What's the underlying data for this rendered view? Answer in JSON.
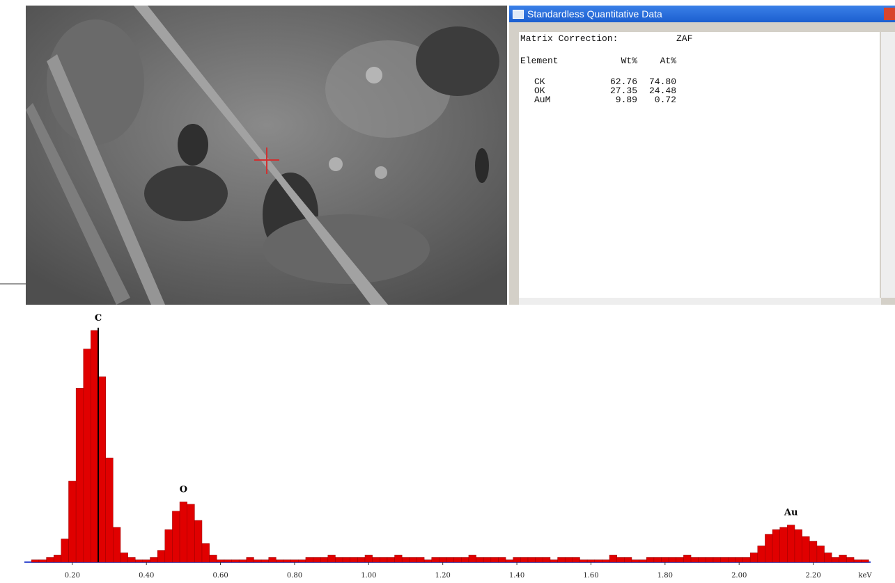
{
  "window": {
    "title": "Standardless Quantitative Data",
    "matrix_label": "Matrix Correction:",
    "matrix_value": "ZAF",
    "header": [
      "Element",
      "Wt%",
      "At%"
    ],
    "rows": [
      [
        "CK",
        "62.76",
        "74.80"
      ],
      [
        "OK",
        "27.35",
        "24.48"
      ],
      [
        "AuM",
        "9.89",
        "0.72"
      ]
    ]
  },
  "chart_data": {
    "type": "histogram",
    "x_label": "keV",
    "color": "#e00000",
    "xlim": [
      0.08,
      2.37
    ],
    "ylim": [
      0,
      100
    ],
    "xticks": [
      {
        "value": 0.2,
        "label": "0.20"
      },
      {
        "value": 0.4,
        "label": "0.40"
      },
      {
        "value": 0.6,
        "label": "0.60"
      },
      {
        "value": 0.8,
        "label": "0.80"
      },
      {
        "value": 1,
        "label": "1.00"
      },
      {
        "value": 1.2,
        "label": "1.20"
      },
      {
        "value": 1.4,
        "label": "1.40"
      },
      {
        "value": 1.6,
        "label": "1.60"
      },
      {
        "value": 1.8,
        "label": "1.80"
      },
      {
        "value": 2,
        "label": "2.00"
      },
      {
        "value": 2.2,
        "label": "2.20"
      }
    ],
    "annotations": [
      {
        "text": "C",
        "x": 0.27
      },
      {
        "text": "O",
        "x": 0.5
      },
      {
        "text": "Au",
        "x": 2.14
      }
    ],
    "x": [
      0.1,
      0.12,
      0.14,
      0.16,
      0.18,
      0.2,
      0.22,
      0.24,
      0.26,
      0.28,
      0.3,
      0.32,
      0.34,
      0.36,
      0.38,
      0.4,
      0.42,
      0.44,
      0.46,
      0.48,
      0.5,
      0.52,
      0.54,
      0.56,
      0.58,
      0.6,
      0.62,
      0.64,
      0.66,
      0.68,
      0.7,
      0.72,
      0.74,
      0.76,
      0.78,
      0.8,
      0.82,
      0.84,
      0.86,
      0.88,
      0.9,
      0.92,
      0.94,
      0.96,
      0.98,
      1.0,
      1.02,
      1.04,
      1.06,
      1.08,
      1.1,
      1.12,
      1.14,
      1.16,
      1.18,
      1.2,
      1.22,
      1.24,
      1.26,
      1.28,
      1.3,
      1.32,
      1.34,
      1.36,
      1.38,
      1.4,
      1.42,
      1.44,
      1.46,
      1.48,
      1.5,
      1.52,
      1.54,
      1.56,
      1.58,
      1.6,
      1.62,
      1.64,
      1.66,
      1.68,
      1.7,
      1.72,
      1.74,
      1.76,
      1.78,
      1.8,
      1.82,
      1.84,
      1.86,
      1.88,
      1.9,
      1.92,
      1.94,
      1.96,
      1.98,
      2.0,
      2.02,
      2.04,
      2.06,
      2.08,
      2.1,
      2.12,
      2.14,
      2.16,
      2.18,
      2.2,
      2.22,
      2.24,
      2.26,
      2.28,
      2.3,
      2.32,
      2.34
    ],
    "values": [
      1,
      1,
      2,
      3,
      10,
      35,
      75,
      92,
      100,
      80,
      45,
      15,
      4,
      2,
      1,
      1,
      2,
      5,
      14,
      22,
      26,
      25,
      18,
      8,
      3,
      1,
      1,
      1,
      1,
      2,
      1,
      1,
      2,
      1,
      1,
      1,
      1,
      2,
      2,
      2,
      3,
      2,
      2,
      2,
      2,
      3,
      2,
      2,
      2,
      3,
      2,
      2,
      2,
      1,
      2,
      2,
      2,
      2,
      2,
      3,
      2,
      2,
      2,
      2,
      1,
      2,
      2,
      2,
      2,
      2,
      1,
      2,
      2,
      2,
      1,
      1,
      1,
      1,
      3,
      2,
      2,
      1,
      1,
      2,
      2,
      2,
      2,
      2,
      3,
      2,
      2,
      2,
      2,
      2,
      2,
      2,
      2,
      4,
      7,
      12,
      14,
      15,
      16,
      14,
      11,
      9,
      7,
      4,
      2,
      3,
      2,
      1,
      1
    ]
  }
}
